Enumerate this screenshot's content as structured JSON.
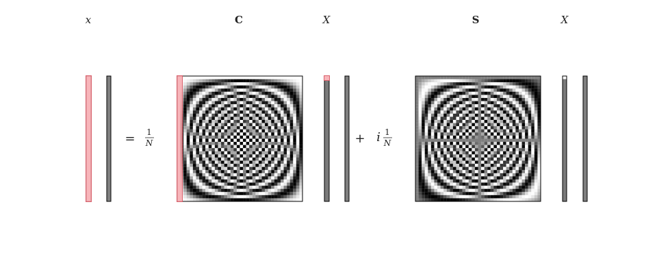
{
  "labels": {
    "x": "x",
    "C": "C",
    "X1": "X",
    "S": "S",
    "X2": "X"
  },
  "operators": {
    "equals": "=",
    "plus": "+",
    "i": "i"
  },
  "fraction": {
    "numerator": "1",
    "denominator": "N"
  },
  "colors": {
    "highlight_fill": "#f7a8ae",
    "highlight_stroke": "#d9606b",
    "bar_gray": "#808080",
    "border": "#000000"
  },
  "matrix_n": 40
}
